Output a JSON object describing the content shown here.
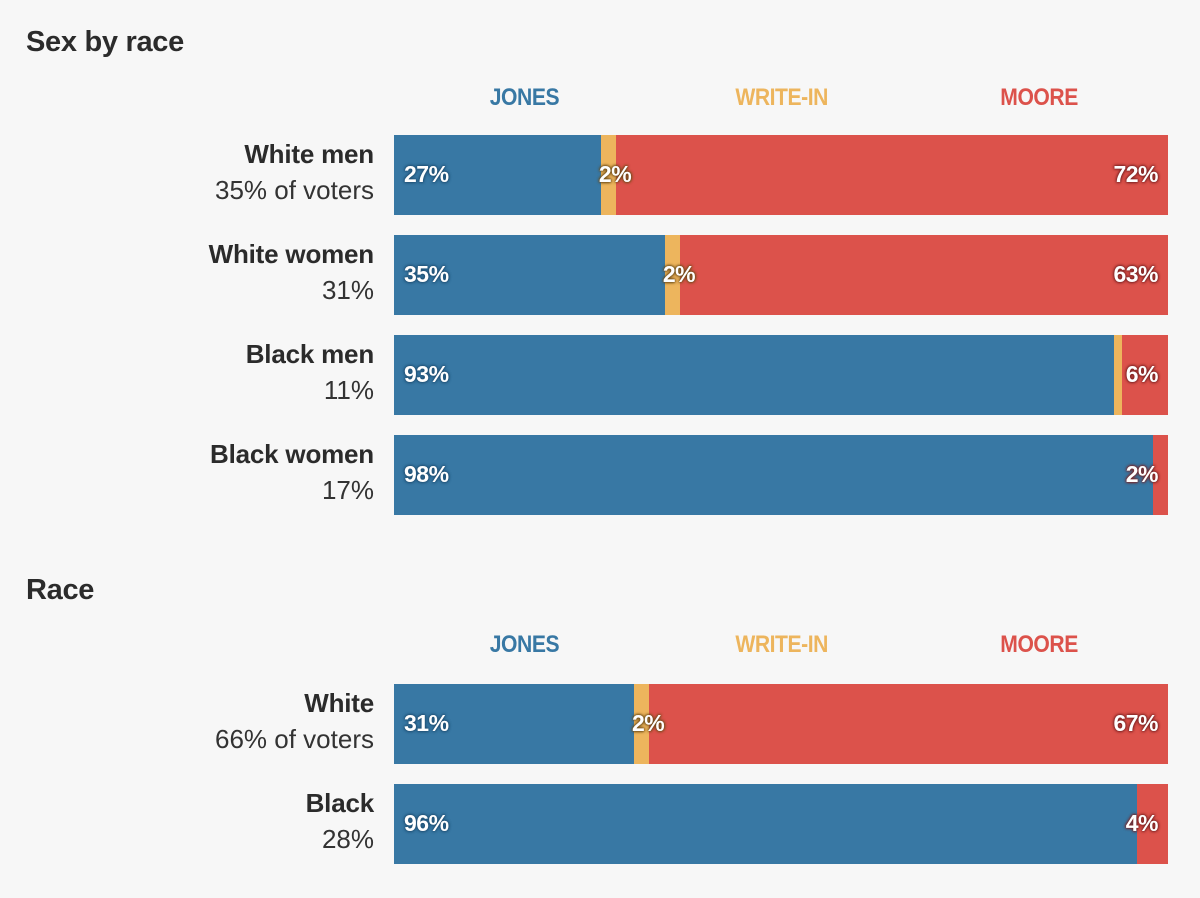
{
  "colors": {
    "jones": "#3878a4",
    "writein": "#edb55d",
    "moore": "#dc524b"
  },
  "legend": {
    "jones": "JONES",
    "writein": "WRITE-IN",
    "moore": "MOORE"
  },
  "chart_data": [
    {
      "type": "bar",
      "stacked": true,
      "orientation": "horizontal",
      "title": "Sex by race",
      "series_names": [
        "JONES",
        "WRITE-IN",
        "MOORE"
      ],
      "categories": [
        "White men",
        "White women",
        "Black men",
        "Black women"
      ],
      "subtitles": [
        "35% of voters",
        "31%",
        "11%",
        "17%"
      ],
      "series": [
        {
          "name": "JONES",
          "values": [
            27,
            35,
            93,
            98
          ]
        },
        {
          "name": "WRITE-IN",
          "values": [
            2,
            2,
            1,
            0
          ]
        },
        {
          "name": "MOORE",
          "values": [
            72,
            63,
            6,
            2
          ]
        }
      ],
      "labels": [
        [
          "27%",
          "2%",
          "72%"
        ],
        [
          "35%",
          "2%",
          "63%"
        ],
        [
          "93%",
          "",
          "6%"
        ],
        [
          "98%",
          "",
          "2%"
        ]
      ]
    },
    {
      "type": "bar",
      "stacked": true,
      "orientation": "horizontal",
      "title": "Race",
      "series_names": [
        "JONES",
        "WRITE-IN",
        "MOORE"
      ],
      "categories": [
        "White",
        "Black"
      ],
      "subtitles": [
        "66% of voters",
        "28%"
      ],
      "series": [
        {
          "name": "JONES",
          "values": [
            31,
            96
          ]
        },
        {
          "name": "WRITE-IN",
          "values": [
            2,
            0
          ]
        },
        {
          "name": "MOORE",
          "values": [
            67,
            4
          ]
        }
      ],
      "labels": [
        [
          "31%",
          "2%",
          "67%"
        ],
        [
          "96%",
          "",
          "4%"
        ]
      ]
    }
  ]
}
